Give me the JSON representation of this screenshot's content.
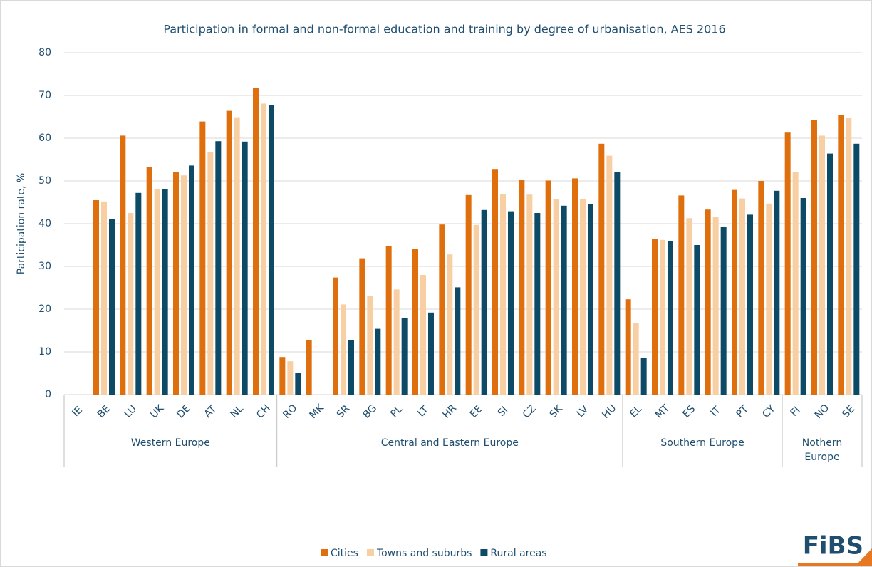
{
  "chart_data": {
    "type": "bar",
    "title": "Participation in formal and non-formal education and training by degree of urbanisation, AES 2016",
    "y_label": "Participation rate, %",
    "categories": [
      "IE",
      "BE",
      "LU",
      "UK",
      "DE",
      "AT",
      "NL",
      "CH",
      "RO",
      "MK",
      "SR",
      "BG",
      "PL",
      "LT",
      "HR",
      "EE",
      "SI",
      "CZ",
      "SK",
      "LV",
      "HU",
      "EL",
      "MT",
      "ES",
      "IT",
      "PT",
      "CY",
      "FI",
      "NO",
      "SE"
    ],
    "category_groups": [
      "Western Europe",
      "Western Europe",
      "Western Europe",
      "Western Europe",
      "Western Europe",
      "Western Europe",
      "Western Europe",
      "Western Europe",
      "Central and Eastern Europe",
      "Central and Eastern Europe",
      "Central and Eastern Europe",
      "Central and Eastern Europe",
      "Central and Eastern Europe",
      "Central and Eastern Europe",
      "Central and Eastern Europe",
      "Central and Eastern Europe",
      "Central and Eastern Europe",
      "Central and Eastern Europe",
      "Central and Eastern Europe",
      "Central and Eastern Europe",
      "Central and Eastern Europe",
      "Southern Europe",
      "Southern Europe",
      "Southern Europe",
      "Southern Europe",
      "Southern Europe",
      "Southern Europe",
      "Nothern Europe",
      "Nothern Europe",
      "Nothern Europe"
    ],
    "series": [
      {
        "name": "Cities",
        "color": "#de6f0c",
        "values": [
          null,
          45.5,
          60.6,
          53.3,
          52.1,
          63.9,
          66.4,
          71.8,
          8.8,
          12.7,
          27.4,
          31.9,
          34.8,
          34.1,
          39.8,
          46.7,
          52.8,
          50.2,
          50.1,
          50.6,
          58.7,
          22.3,
          36.5,
          46.6,
          43.3,
          47.9,
          50.0,
          61.3,
          64.3,
          65.4
        ]
      },
      {
        "name": "Towns and suburbs",
        "color": "#f8cfa3",
        "values": [
          null,
          45.2,
          42.5,
          48.0,
          51.3,
          56.7,
          64.9,
          68.1,
          7.8,
          null,
          21.1,
          23.0,
          24.6,
          28.0,
          32.8,
          39.7,
          47.0,
          46.8,
          45.7,
          45.7,
          55.9,
          16.7,
          36.2,
          41.3,
          41.6,
          45.9,
          44.7,
          52.1,
          60.6,
          64.7
        ]
      },
      {
        "name": "Rural areas",
        "color": "#0c4a66",
        "values": [
          null,
          41.0,
          47.2,
          48.0,
          53.6,
          59.3,
          59.2,
          67.8,
          5.1,
          null,
          12.7,
          15.4,
          17.9,
          19.2,
          25.1,
          43.2,
          42.9,
          42.5,
          44.2,
          44.6,
          52.1,
          8.6,
          36.0,
          35.0,
          39.3,
          42.1,
          47.7,
          46.0,
          56.4,
          58.7
        ]
      }
    ],
    "ylim": [
      0,
      80
    ],
    "yticks": [
      0,
      10,
      20,
      30,
      40,
      50,
      60,
      70,
      80
    ],
    "grid": true,
    "logo": "FiBS"
  }
}
